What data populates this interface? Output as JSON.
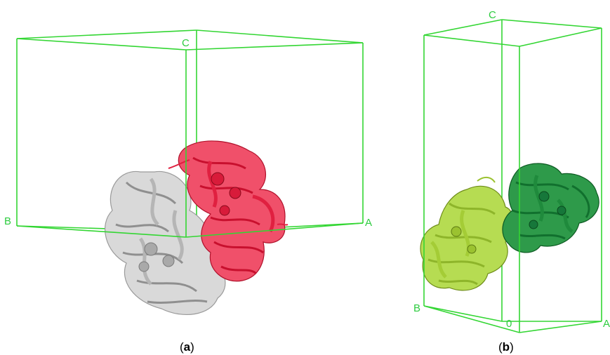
{
  "panel_a": {
    "caption_open": "(",
    "caption_letter": "a",
    "caption_close": ")",
    "axis_labels": {
      "c": "C",
      "b": "B",
      "a": "A"
    },
    "colors": {
      "cell": "#33d633",
      "molecule_1": "#e8243c",
      "molecule_2": "#c8c8c8"
    }
  },
  "panel_b": {
    "caption_open": "(",
    "caption_letter": "b",
    "caption_close": ")",
    "axis_labels": {
      "c": "C",
      "b": "B",
      "a": "A",
      "origin": "0"
    },
    "colors": {
      "cell": "#33d633",
      "molecule_1": "#9ccc2a",
      "molecule_2": "#1e8a3a"
    }
  }
}
